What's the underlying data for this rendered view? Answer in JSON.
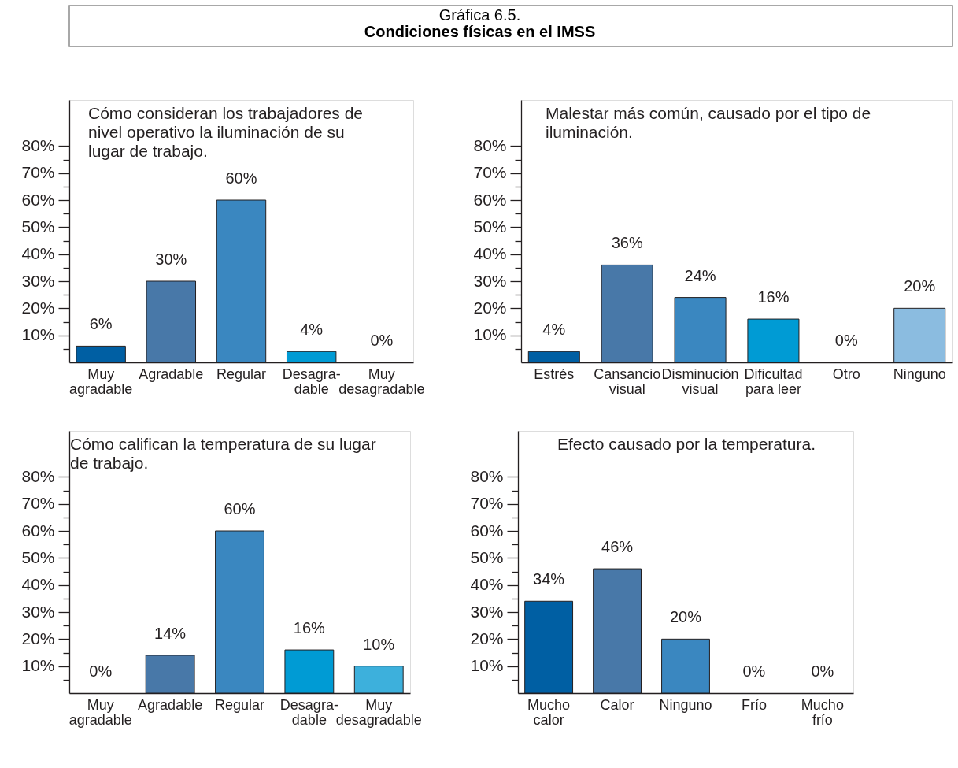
{
  "chart_data": [
    {
      "type": "other",
      "title": "Gráfica 6.5.",
      "subtitle": "Condiciones físicas en el IMSS"
    },
    {
      "type": "bar",
      "title": "Cómo consideran los trabajadores de\nnivel operativo la iluminación de su\nlugar de trabajo.",
      "categories": [
        "Muy\nagradable",
        "Agradable",
        "Regular",
        "Desagra-\ndable",
        "Muy\ndesagradable"
      ],
      "values": [
        6,
        30,
        60,
        4,
        0
      ],
      "colors": [
        "#005fa3",
        "#4878a8",
        "#3a87c0",
        "#009bd4",
        null
      ],
      "value_labels": [
        "6%",
        "30%",
        "60%",
        "4%",
        "0%"
      ],
      "ylim": [
        0,
        97
      ],
      "yticks": [
        {
          "value": 5,
          "label": null
        },
        {
          "value": 10,
          "label": "10%"
        },
        {
          "value": 15,
          "label": null
        },
        {
          "value": 20,
          "label": "20%"
        },
        {
          "value": 25,
          "label": null
        },
        {
          "value": 30,
          "label": "30%"
        },
        {
          "value": 35,
          "label": null
        },
        {
          "value": 40,
          "label": "40%"
        },
        {
          "value": 45,
          "label": null
        },
        {
          "value": 50,
          "label": "50%"
        },
        {
          "value": 55,
          "label": null
        },
        {
          "value": 60,
          "label": "60%"
        },
        {
          "value": 65,
          "label": null
        },
        {
          "value": 70,
          "label": "70%"
        },
        {
          "value": 75,
          "label": null
        },
        {
          "value": 80,
          "label": "80%"
        }
      ]
    },
    {
      "type": "bar",
      "title": "Malestar más común, causado por el tipo de\niluminación.",
      "categories": [
        "Estrés",
        "Cansancio\nvisual",
        "Disminución\nvisual",
        "Dificultad\npara leer",
        "Otro",
        "Ninguno"
      ],
      "values": [
        4,
        36,
        24,
        16,
        0,
        20
      ],
      "colors": [
        "#005fa3",
        "#4878a8",
        "#3a87c0",
        "#009bd4",
        null,
        "#8bbce0"
      ],
      "value_labels": [
        "4%",
        "36%",
        "24%",
        "16%",
        "0%",
        "20%"
      ],
      "ylim": [
        0,
        97
      ],
      "yticks": [
        {
          "value": 5,
          "label": null
        },
        {
          "value": 10,
          "label": "10%"
        },
        {
          "value": 15,
          "label": null
        },
        {
          "value": 20,
          "label": "20%"
        },
        {
          "value": 25,
          "label": null
        },
        {
          "value": 30,
          "label": "30%"
        },
        {
          "value": 35,
          "label": null
        },
        {
          "value": 40,
          "label": "40%"
        },
        {
          "value": 45,
          "label": null
        },
        {
          "value": 50,
          "label": "50%"
        },
        {
          "value": 55,
          "label": null
        },
        {
          "value": 60,
          "label": "60%"
        },
        {
          "value": 65,
          "label": null
        },
        {
          "value": 70,
          "label": "70%"
        },
        {
          "value": 75,
          "label": null
        },
        {
          "value": 80,
          "label": "80%"
        }
      ]
    },
    {
      "type": "bar",
      "title": "Cómo califican la temperatura de su lugar\nde trabajo.",
      "categories": [
        "Muy\nagradable",
        "Agradable",
        "Regular",
        "Desagra-\ndable",
        "Muy\ndesagradable"
      ],
      "values": [
        0,
        14,
        60,
        16,
        10
      ],
      "colors": [
        null,
        "#4878a8",
        "#3a87c0",
        "#009bd4",
        "#3db0dc"
      ],
      "value_labels": [
        "0%",
        "14%",
        "60%",
        "16%",
        "10%"
      ],
      "ylim": [
        0,
        97
      ],
      "yticks": [
        {
          "value": 5,
          "label": null
        },
        {
          "value": 10,
          "label": "10%"
        },
        {
          "value": 15,
          "label": null
        },
        {
          "value": 20,
          "label": "20%"
        },
        {
          "value": 25,
          "label": null
        },
        {
          "value": 30,
          "label": "30%"
        },
        {
          "value": 35,
          "label": null
        },
        {
          "value": 40,
          "label": "40%"
        },
        {
          "value": 45,
          "label": null
        },
        {
          "value": 50,
          "label": "50%"
        },
        {
          "value": 55,
          "label": null
        },
        {
          "value": 60,
          "label": "60%"
        },
        {
          "value": 65,
          "label": null
        },
        {
          "value": 70,
          "label": "70%"
        },
        {
          "value": 75,
          "label": null
        },
        {
          "value": 80,
          "label": "80%"
        }
      ]
    },
    {
      "type": "bar",
      "title": "Efecto causado por la temperatura.",
      "categories": [
        "Mucho\ncalor",
        "Calor",
        "Ninguno",
        "Frío",
        "Mucho\nfrío"
      ],
      "values": [
        34,
        46,
        20,
        0,
        0
      ],
      "colors": [
        "#005fa3",
        "#4878a8",
        "#3a87c0",
        null,
        null
      ],
      "value_labels": [
        "34%",
        "46%",
        "20%",
        "0%",
        "0%"
      ],
      "ylim": [
        0,
        97
      ],
      "yticks": [
        {
          "value": 5,
          "label": null
        },
        {
          "value": 10,
          "label": "10%"
        },
        {
          "value": 15,
          "label": null
        },
        {
          "value": 20,
          "label": "20%"
        },
        {
          "value": 25,
          "label": null
        },
        {
          "value": 30,
          "label": "30%"
        },
        {
          "value": 35,
          "label": null
        },
        {
          "value": 40,
          "label": "40%"
        },
        {
          "value": 45,
          "label": null
        },
        {
          "value": 50,
          "label": "50%"
        },
        {
          "value": 55,
          "label": null
        },
        {
          "value": 60,
          "label": "60%"
        },
        {
          "value": 65,
          "label": null
        },
        {
          "value": 70,
          "label": "70%"
        },
        {
          "value": 75,
          "label": null
        },
        {
          "value": 80,
          "label": "80%"
        }
      ]
    }
  ]
}
